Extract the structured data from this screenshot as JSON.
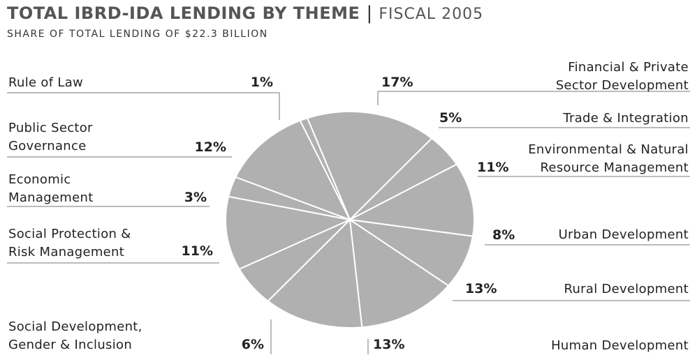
{
  "title": {
    "main": "TOTAL IBRD-IDA LENDING BY THEME",
    "separator": "|",
    "year": "FISCAL 2005"
  },
  "subtitle": "SHARE OF TOTAL LENDING OF $22.3 BILLION",
  "colors": {
    "slice": "#b0b0b0",
    "slice_border": "#ffffff",
    "leader": "#777777"
  },
  "chart_data": {
    "type": "pie",
    "title": "TOTAL IBRD-IDA LENDING BY THEME | FISCAL 2005",
    "subtitle": "SHARE OF TOTAL LENDING OF $22.3 BILLION",
    "unit": "%",
    "slices": [
      {
        "label_lines": [
          "Financial & Private",
          "Sector Development"
        ],
        "value": 17,
        "value_label": "17%"
      },
      {
        "label_lines": [
          "Trade & Integration"
        ],
        "value": 5,
        "value_label": "5%"
      },
      {
        "label_lines": [
          "Environmental & Natural",
          "Resource Management"
        ],
        "value": 11,
        "value_label": "11%"
      },
      {
        "label_lines": [
          "Urban Development"
        ],
        "value": 8,
        "value_label": "8%"
      },
      {
        "label_lines": [
          "Rural Development"
        ],
        "value": 13,
        "value_label": "13%"
      },
      {
        "label_lines": [
          "Human Development"
        ],
        "value": 13,
        "value_label": "13%"
      },
      {
        "label_lines": [
          "Social Development,",
          "Gender & Inclusion"
        ],
        "value": 6,
        "value_label": "6%"
      },
      {
        "label_lines": [
          "Social Protection &",
          "Risk Management"
        ],
        "value": 11,
        "value_label": "11%"
      },
      {
        "label_lines": [
          "Economic",
          "Management"
        ],
        "value": 3,
        "value_label": "3%"
      },
      {
        "label_lines": [
          "Public Sector",
          "Governance"
        ],
        "value": 12,
        "value_label": "12%"
      },
      {
        "label_lines": [
          "Rule of Law"
        ],
        "value": 1,
        "value_label": "1%"
      }
    ]
  }
}
